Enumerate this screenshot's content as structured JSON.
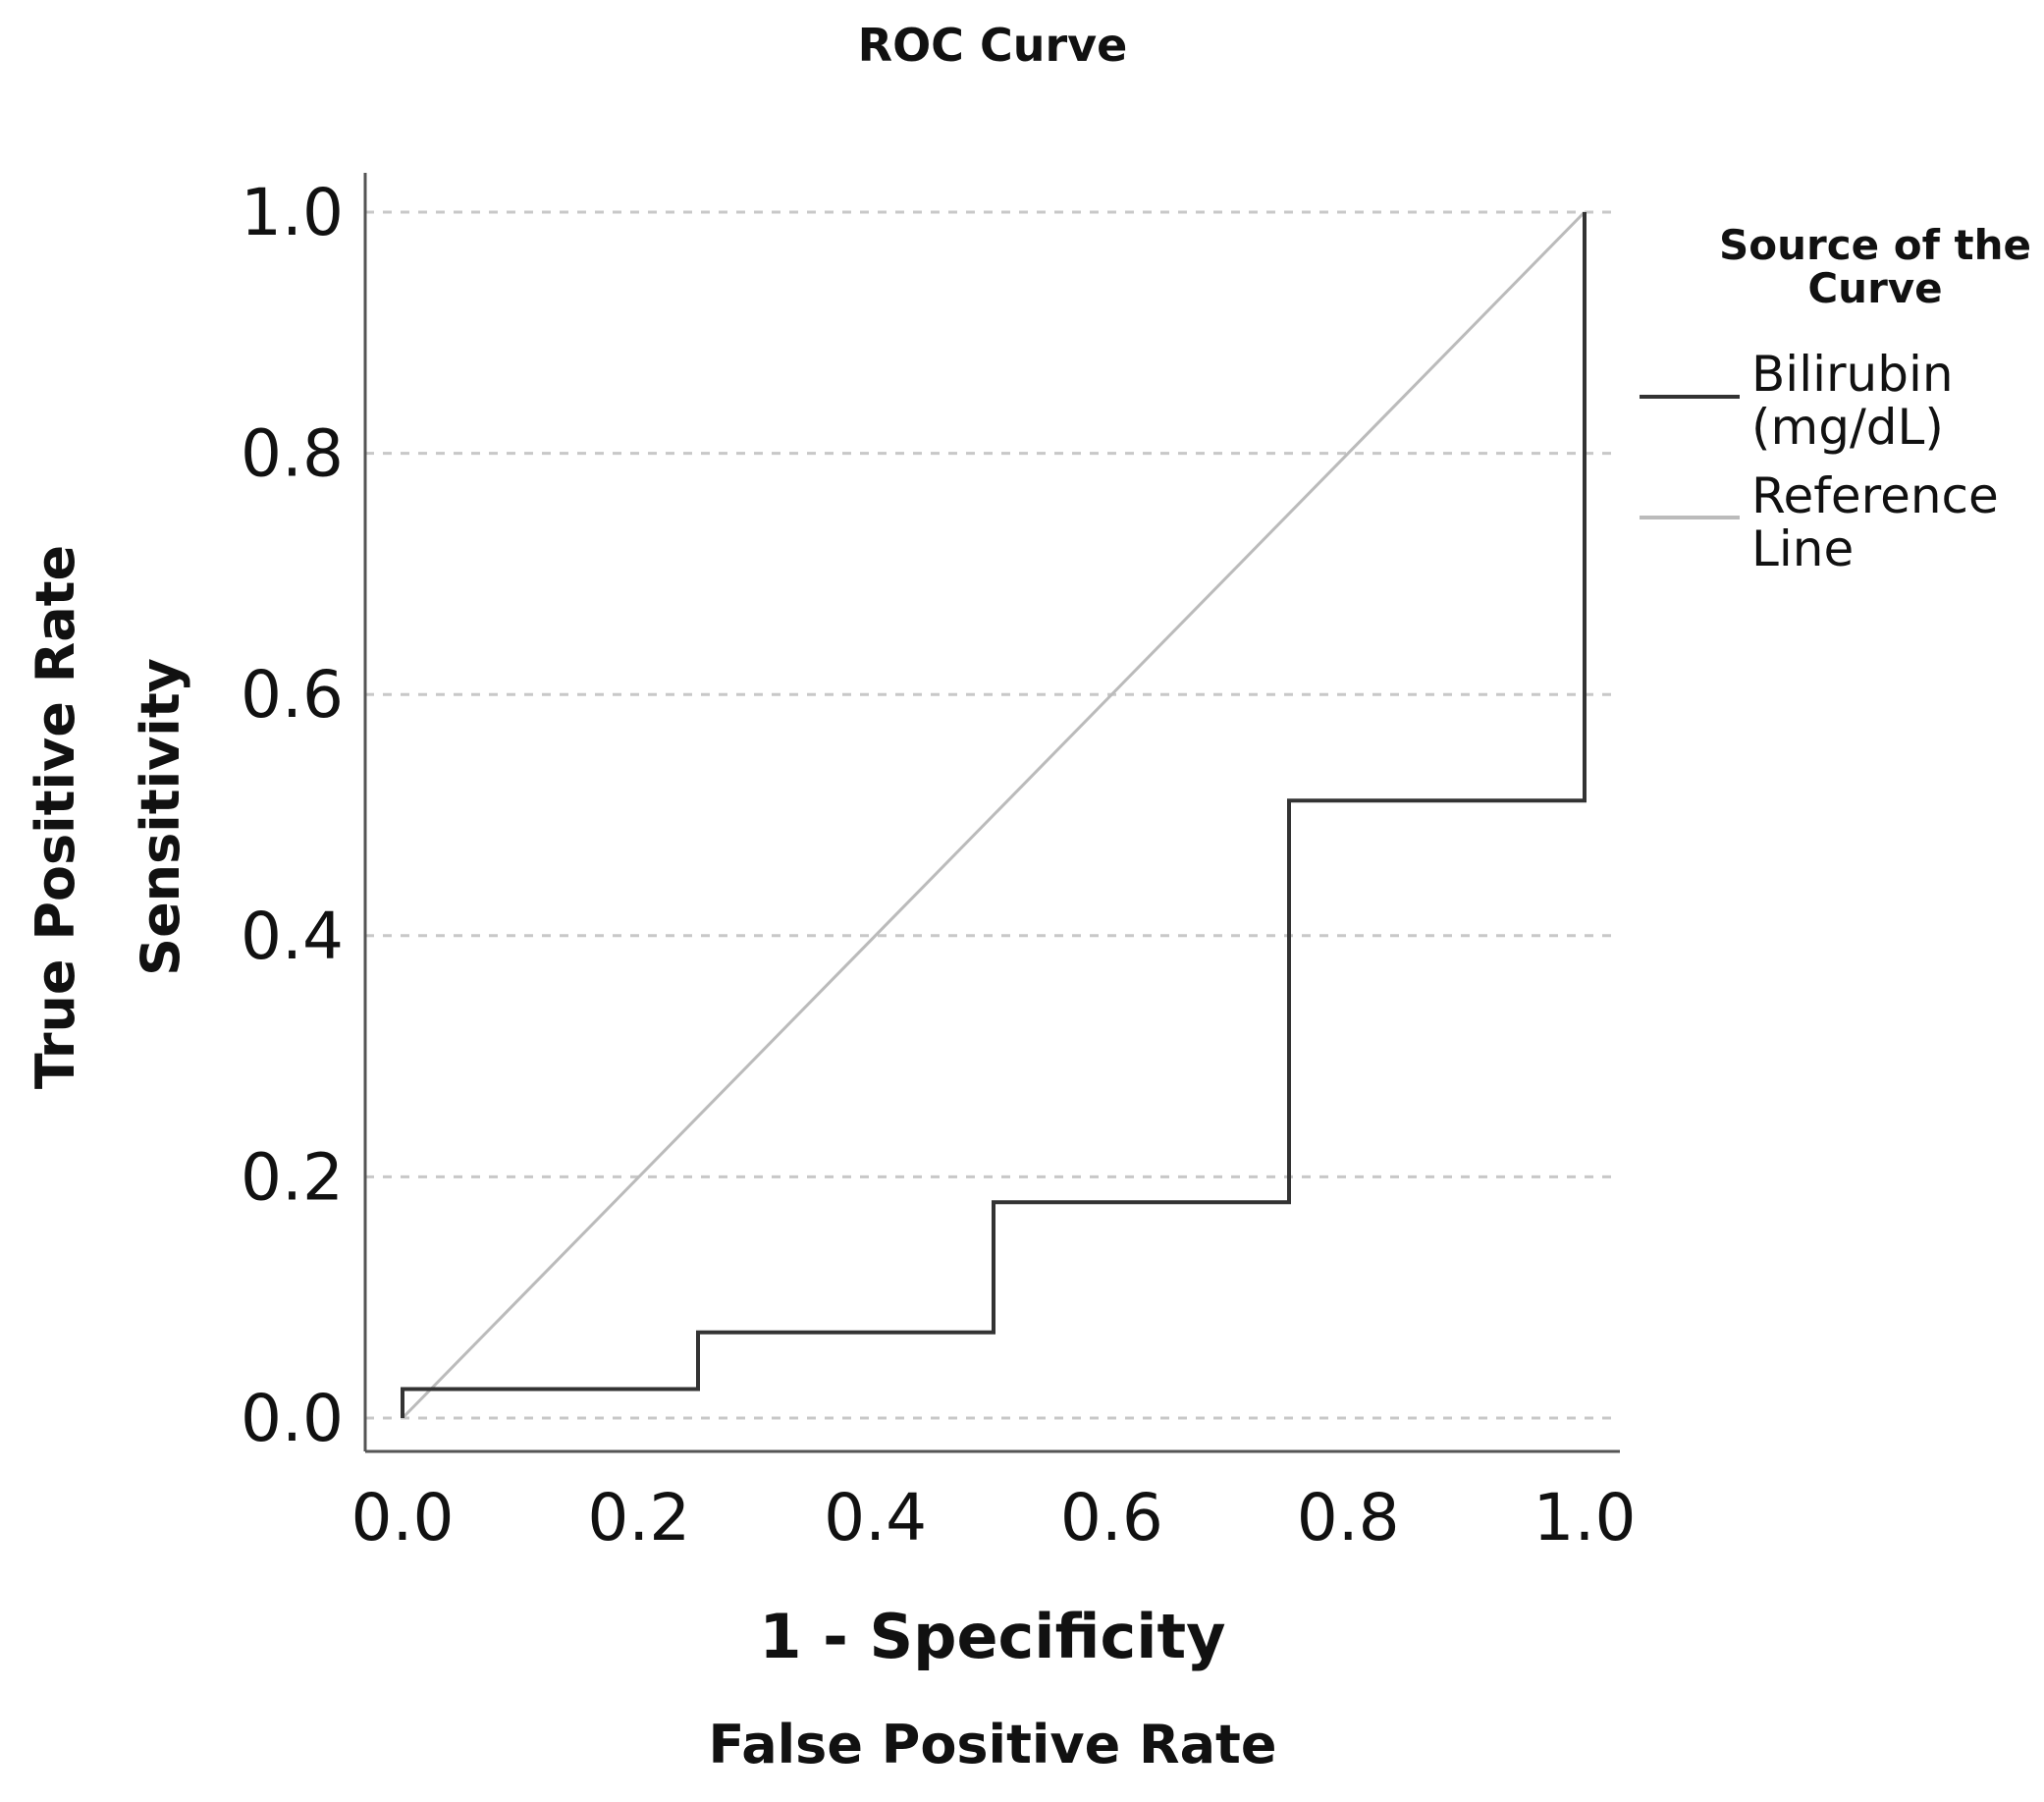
{
  "chart_data": {
    "type": "line",
    "title": "ROC Curve",
    "xlabel": "1 - Specificity",
    "xlabel_secondary": "False Positive Rate",
    "ylabel": "Sensitivity",
    "ylabel_secondary": "True Positive Rate",
    "xlim": [
      0,
      1
    ],
    "ylim": [
      0,
      1
    ],
    "x_ticks": [
      0.0,
      0.2,
      0.4,
      0.6,
      0.8,
      1.0
    ],
    "y_ticks": [
      0.0,
      0.2,
      0.4,
      0.6,
      0.8,
      1.0
    ],
    "x_tick_labels": [
      "0.0",
      "0.2",
      "0.4",
      "0.6",
      "0.8",
      "1.0"
    ],
    "y_tick_labels": [
      "0.0",
      "0.2",
      "0.4",
      "0.6",
      "0.8",
      "1.0"
    ],
    "grid": "horizontal dashed",
    "legend": {
      "title_line1": "Source of the",
      "title_line2": "Curve",
      "placement": "right",
      "entries": [
        {
          "line1": "Bilirubin",
          "line2": "(mg/dL)",
          "color": "#333333"
        },
        {
          "line1": "Reference",
          "line2": "Line",
          "color": "#bbbbbb"
        }
      ]
    },
    "series": [
      {
        "name": "Bilirubin (mg/dL)",
        "color": "#333333",
        "x": [
          0.0,
          0.0,
          0.25,
          0.25,
          0.5,
          0.5,
          0.75,
          0.75,
          1.0,
          1.0
        ],
        "y": [
          0.0,
          0.024,
          0.024,
          0.071,
          0.071,
          0.179,
          0.179,
          0.512,
          0.512,
          1.0
        ]
      },
      {
        "name": "Reference Line",
        "color": "#bbbbbb",
        "x": [
          0.0,
          1.0
        ],
        "y": [
          0.0,
          1.0
        ]
      }
    ]
  }
}
